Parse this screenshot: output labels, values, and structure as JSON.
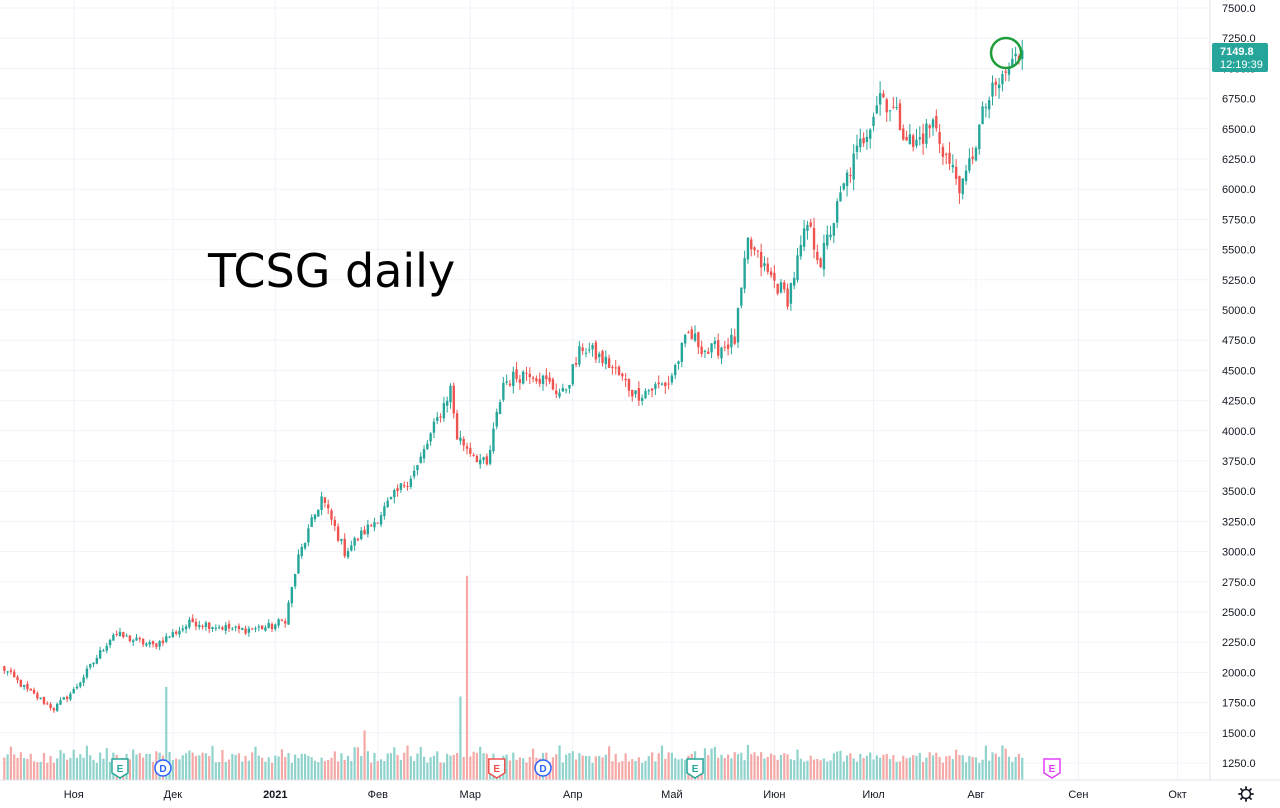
{
  "chart_data": {
    "type": "candlestick",
    "title": "TCSG daily",
    "ylim": [
      1100,
      7550
    ],
    "grid": true,
    "colors": {
      "up": "#26a69a",
      "down": "#ef5350",
      "volume_up": "#8fd3cc",
      "volume_down": "#f4a9a7",
      "price_tag": "#26a69a",
      "circle": "#1e9e3a",
      "earnings": "#26a69a",
      "earnings_past": "#ef5350",
      "dividend": "#2962ff",
      "earnings_future": "#e040fb"
    },
    "y_ticks": [
      "1250.0",
      "1500.0",
      "1750.0",
      "2000.0",
      "2250.0",
      "2500.0",
      "2750.0",
      "3000.0",
      "3250.0",
      "3500.0",
      "3750.0",
      "4000.0",
      "4250.0",
      "4500.0",
      "4750.0",
      "5000.0",
      "5250.0",
      "5500.0",
      "5750.0",
      "6000.0",
      "6250.0",
      "6500.0",
      "6750.0",
      "7000.0",
      "7250.0",
      "7500.0"
    ],
    "x_ticks": [
      {
        "label": "Ноя",
        "day": 22
      },
      {
        "label": "Дек",
        "day": 52
      },
      {
        "label": "2021",
        "day": 83
      },
      {
        "label": "Фев",
        "day": 114
      },
      {
        "label": "Мар",
        "day": 142
      },
      {
        "label": "Апр",
        "day": 173
      },
      {
        "label": "Май",
        "day": 203
      },
      {
        "label": "Июн",
        "day": 234
      },
      {
        "label": "Июл",
        "day": 264
      },
      {
        "label": "Авг",
        "day": 295
      },
      {
        "label": "Сен",
        "day": 326
      },
      {
        "label": "Окт",
        "day": 356
      }
    ],
    "last_price": "7149.8",
    "last_time": "12:19:39",
    "anchors": [
      [
        0,
        2050
      ],
      [
        8,
        1850
      ],
      [
        16,
        1700
      ],
      [
        22,
        1850
      ],
      [
        34,
        2320
      ],
      [
        46,
        2220
      ],
      [
        58,
        2420
      ],
      [
        72,
        2350
      ],
      [
        82,
        2380
      ],
      [
        86,
        2440
      ],
      [
        90,
        2950
      ],
      [
        97,
        3450
      ],
      [
        104,
        3000
      ],
      [
        113,
        3250
      ],
      [
        126,
        3700
      ],
      [
        136,
        4350
      ],
      [
        138,
        3950
      ],
      [
        147,
        3700
      ],
      [
        152,
        4400
      ],
      [
        160,
        4500
      ],
      [
        170,
        4300
      ],
      [
        176,
        4700
      ],
      [
        184,
        4550
      ],
      [
        192,
        4300
      ],
      [
        202,
        4400
      ],
      [
        208,
        4800
      ],
      [
        214,
        4650
      ],
      [
        222,
        4750
      ],
      [
        226,
        5550
      ],
      [
        232,
        5300
      ],
      [
        238,
        5100
      ],
      [
        244,
        5700
      ],
      [
        248,
        5400
      ],
      [
        256,
        6100
      ],
      [
        262,
        6500
      ],
      [
        266,
        6800
      ],
      [
        270,
        6650
      ],
      [
        276,
        6350
      ],
      [
        282,
        6550
      ],
      [
        287,
        6200
      ],
      [
        291,
        6000
      ],
      [
        298,
        6700
      ],
      [
        305,
        7000
      ],
      [
        309,
        7150
      ]
    ],
    "volume_spikes": [
      [
        50,
        1880
      ],
      [
        110,
        1520
      ],
      [
        139,
        1800
      ],
      [
        141,
        2800
      ],
      [
        226,
        1400
      ]
    ],
    "events": [
      {
        "type": "E",
        "day": 36,
        "style": "earnings"
      },
      {
        "type": "D",
        "day": 49,
        "style": "dividend"
      },
      {
        "type": "E",
        "day": 150,
        "style": "earnings_past"
      },
      {
        "type": "D",
        "day": 164,
        "style": "dividend"
      },
      {
        "type": "E",
        "day": 210,
        "style": "earnings"
      },
      {
        "type": "E",
        "day": 318,
        "style": "earnings_future"
      }
    ]
  }
}
